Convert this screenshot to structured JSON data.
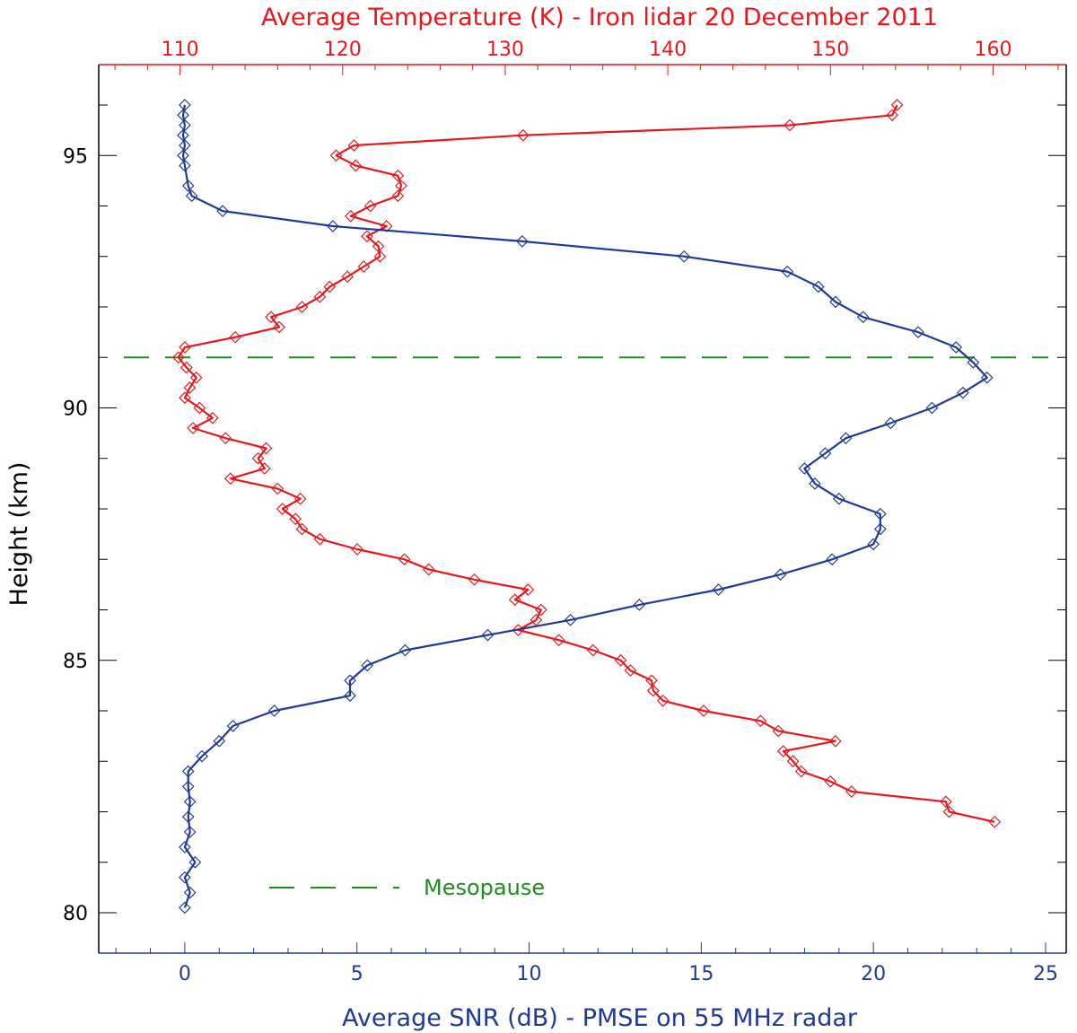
{
  "colors": {
    "temperature": "#e8171c",
    "snr": "#1f3a96",
    "mesopause": "#1e8c1e",
    "axis": "#000000"
  },
  "legend": {
    "mesopause_label": "Mesopause"
  },
  "chart_data": {
    "type": "line",
    "title": "Average Temperature (K) - Iron lidar 20 December 2011",
    "xlabel": "Average SNR (dB) - PMSE on 55 MHz radar",
    "ylabel": "Height (km)",
    "top_axis": {
      "label": "Average Temperature (K) - Iron lidar 20 December 2011",
      "range": [
        105,
        164.5
      ],
      "ticks": [
        110,
        120,
        130,
        140,
        150,
        160
      ],
      "tick_labels": [
        "110",
        "120",
        "130",
        "140",
        "150",
        "160"
      ],
      "minor_step": 2
    },
    "bottom_axis": {
      "label": "Average SNR (dB) - PMSE on 55 MHz radar",
      "range": [
        -2.5,
        25.6
      ],
      "ticks": [
        0,
        5,
        10,
        15,
        20,
        25
      ],
      "tick_labels": [
        "0",
        "5",
        "10",
        "15",
        "20",
        "25"
      ],
      "minor_step": 1
    },
    "left_axis": {
      "label": "Height (km)",
      "range": [
        79.2,
        96.8
      ],
      "ticks": [
        80,
        85,
        90,
        95
      ],
      "tick_labels": [
        "80",
        "85",
        "90",
        "95"
      ],
      "minor_step": 1
    },
    "mesopause_height": 91,
    "series": [
      {
        "name": "Temperature",
        "axis": "top",
        "points": [
          [
            154.1,
            96.0
          ],
          [
            153.8,
            95.8
          ],
          [
            147.5,
            95.6
          ],
          [
            131.1,
            95.4
          ],
          [
            120.7,
            95.2
          ],
          [
            119.6,
            95.0
          ],
          [
            120.8,
            94.8
          ],
          [
            123.4,
            94.6
          ],
          [
            123.6,
            94.4
          ],
          [
            123.4,
            94.2
          ],
          [
            121.7,
            94.0
          ],
          [
            120.5,
            93.8
          ],
          [
            122.7,
            93.6
          ],
          [
            121.5,
            93.4
          ],
          [
            122.2,
            93.2
          ],
          [
            122.3,
            93.0
          ],
          [
            121.3,
            92.8
          ],
          [
            120.3,
            92.6
          ],
          [
            119.2,
            92.4
          ],
          [
            118.6,
            92.2
          ],
          [
            117.5,
            92.0
          ],
          [
            115.6,
            91.8
          ],
          [
            116.1,
            91.6
          ],
          [
            113.4,
            91.4
          ],
          [
            110.3,
            91.2
          ],
          [
            109.9,
            91.0
          ],
          [
            110.4,
            90.8
          ],
          [
            111.0,
            90.6
          ],
          [
            110.6,
            90.4
          ],
          [
            110.3,
            90.2
          ],
          [
            111.2,
            90.0
          ],
          [
            112.0,
            89.8
          ],
          [
            110.8,
            89.6
          ],
          [
            112.8,
            89.4
          ],
          [
            115.3,
            89.2
          ],
          [
            114.8,
            89.0
          ],
          [
            115.2,
            88.8
          ],
          [
            113.1,
            88.6
          ],
          [
            116.0,
            88.4
          ],
          [
            117.4,
            88.2
          ],
          [
            116.3,
            88.0
          ],
          [
            117.1,
            87.8
          ],
          [
            117.5,
            87.6
          ],
          [
            118.6,
            87.4
          ],
          [
            120.9,
            87.2
          ],
          [
            123.8,
            87.0
          ],
          [
            125.3,
            86.8
          ],
          [
            128.1,
            86.6
          ],
          [
            131.4,
            86.4
          ],
          [
            130.6,
            86.2
          ],
          [
            132.2,
            86.0
          ],
          [
            131.9,
            85.8
          ],
          [
            130.8,
            85.6
          ],
          [
            133.3,
            85.4
          ],
          [
            135.4,
            85.2
          ],
          [
            137.1,
            85.0
          ],
          [
            137.7,
            84.8
          ],
          [
            139.0,
            84.6
          ],
          [
            139.1,
            84.4
          ],
          [
            139.7,
            84.2
          ],
          [
            142.2,
            84.0
          ],
          [
            145.7,
            83.8
          ],
          [
            146.8,
            83.6
          ],
          [
            150.3,
            83.4
          ],
          [
            147.1,
            83.2
          ],
          [
            147.7,
            83.0
          ],
          [
            148.2,
            82.8
          ],
          [
            150.0,
            82.6
          ],
          [
            151.3,
            82.4
          ],
          [
            157.1,
            82.2
          ],
          [
            157.3,
            82.0
          ],
          [
            160.1,
            81.8
          ]
        ]
      },
      {
        "name": "SNR",
        "axis": "bottom",
        "points": [
          [
            0.0,
            96.0
          ],
          [
            -0.05,
            95.8
          ],
          [
            0.0,
            95.6
          ],
          [
            -0.05,
            95.4
          ],
          [
            0.0,
            95.2
          ],
          [
            -0.05,
            95.0
          ],
          [
            0.0,
            94.8
          ],
          [
            0.1,
            94.4
          ],
          [
            0.2,
            94.2
          ],
          [
            1.1,
            93.9
          ],
          [
            4.3,
            93.6
          ],
          [
            9.8,
            93.3
          ],
          [
            14.5,
            93.0
          ],
          [
            17.5,
            92.7
          ],
          [
            18.4,
            92.4
          ],
          [
            18.9,
            92.1
          ],
          [
            19.7,
            91.8
          ],
          [
            21.3,
            91.5
          ],
          [
            22.4,
            91.2
          ],
          [
            22.9,
            90.9
          ],
          [
            23.3,
            90.6
          ],
          [
            22.6,
            90.3
          ],
          [
            21.7,
            90.0
          ],
          [
            20.5,
            89.7
          ],
          [
            19.2,
            89.4
          ],
          [
            18.6,
            89.1
          ],
          [
            18.0,
            88.8
          ],
          [
            18.3,
            88.5
          ],
          [
            19.0,
            88.2
          ],
          [
            20.2,
            87.9
          ],
          [
            20.2,
            87.6
          ],
          [
            20.0,
            87.3
          ],
          [
            18.8,
            87.0
          ],
          [
            17.3,
            86.7
          ],
          [
            15.5,
            86.4
          ],
          [
            13.2,
            86.1
          ],
          [
            11.2,
            85.8
          ],
          [
            8.8,
            85.5
          ],
          [
            6.4,
            85.2
          ],
          [
            5.3,
            84.9
          ],
          [
            4.8,
            84.6
          ],
          [
            4.8,
            84.3
          ],
          [
            2.6,
            84.0
          ],
          [
            1.4,
            83.7
          ],
          [
            1.0,
            83.4
          ],
          [
            0.5,
            83.1
          ],
          [
            0.1,
            82.8
          ],
          [
            0.1,
            82.5
          ],
          [
            0.15,
            82.2
          ],
          [
            0.1,
            81.9
          ],
          [
            0.15,
            81.6
          ],
          [
            0.0,
            81.3
          ],
          [
            0.3,
            81.0
          ],
          [
            0.0,
            80.7
          ],
          [
            0.15,
            80.4
          ],
          [
            0.0,
            80.1
          ]
        ]
      }
    ]
  }
}
